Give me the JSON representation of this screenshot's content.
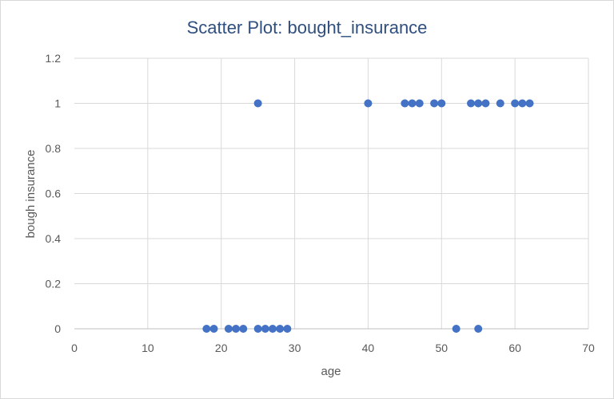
{
  "chart_data": {
    "type": "scatter",
    "title": "Scatter Plot: bought_insurance",
    "xlabel": "age",
    "ylabel": "bough insurance",
    "xlim": [
      0,
      70
    ],
    "ylim": [
      0,
      1.2
    ],
    "x_ticks": [
      "0",
      "10",
      "20",
      "30",
      "40",
      "50",
      "60",
      "70"
    ],
    "y_ticks": [
      "0",
      "0.2",
      "0.4",
      "0.6",
      "0.8",
      "1",
      "1.2"
    ],
    "grid": true,
    "legend": "none",
    "marker_color": "#4472c4",
    "series": [
      {
        "points": [
          {
            "x": 18,
            "y": 0
          },
          {
            "x": 19,
            "y": 0
          },
          {
            "x": 21,
            "y": 0
          },
          {
            "x": 22,
            "y": 0
          },
          {
            "x": 23,
            "y": 0
          },
          {
            "x": 25,
            "y": 0
          },
          {
            "x": 26,
            "y": 0
          },
          {
            "x": 27,
            "y": 0
          },
          {
            "x": 28,
            "y": 0
          },
          {
            "x": 29,
            "y": 0
          },
          {
            "x": 52,
            "y": 0
          },
          {
            "x": 55,
            "y": 0
          },
          {
            "x": 25,
            "y": 1
          },
          {
            "x": 40,
            "y": 1
          },
          {
            "x": 45,
            "y": 1
          },
          {
            "x": 46,
            "y": 1
          },
          {
            "x": 47,
            "y": 1
          },
          {
            "x": 49,
            "y": 1
          },
          {
            "x": 50,
            "y": 1
          },
          {
            "x": 54,
            "y": 1
          },
          {
            "x": 55,
            "y": 1
          },
          {
            "x": 56,
            "y": 1
          },
          {
            "x": 58,
            "y": 1
          },
          {
            "x": 60,
            "y": 1
          },
          {
            "x": 61,
            "y": 1
          },
          {
            "x": 62,
            "y": 1
          }
        ]
      }
    ]
  }
}
